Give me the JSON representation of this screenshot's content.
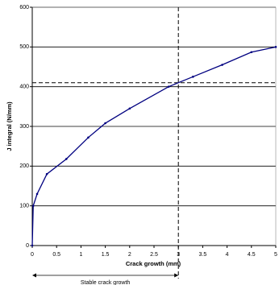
{
  "chart_data": {
    "type": "line",
    "x_label": "Crack growth (mm)",
    "y_label": "J integral (N/mm)",
    "annotation": "Stable crack growth",
    "series": [
      {
        "color": "#000080",
        "x": [
          0,
          0.02,
          0.1,
          0.3,
          0.7,
          1.15,
          1.5,
          2.0,
          2.8,
          3.3,
          3.9,
          4.5,
          5
        ],
        "values": [
          0,
          100,
          130,
          180,
          218,
          272,
          308,
          345,
          400,
          425,
          455,
          487,
          500
        ]
      }
    ],
    "xlim": [
      0,
      5
    ],
    "ylim": [
      0,
      600
    ],
    "xticks": [
      0,
      0.5,
      1,
      1.5,
      2,
      2.5,
      3,
      3.5,
      4,
      4.5,
      5
    ],
    "yticks": [
      0,
      100,
      200,
      300,
      400,
      500,
      600
    ],
    "grid": true,
    "hline": 410,
    "vline": 3
  }
}
